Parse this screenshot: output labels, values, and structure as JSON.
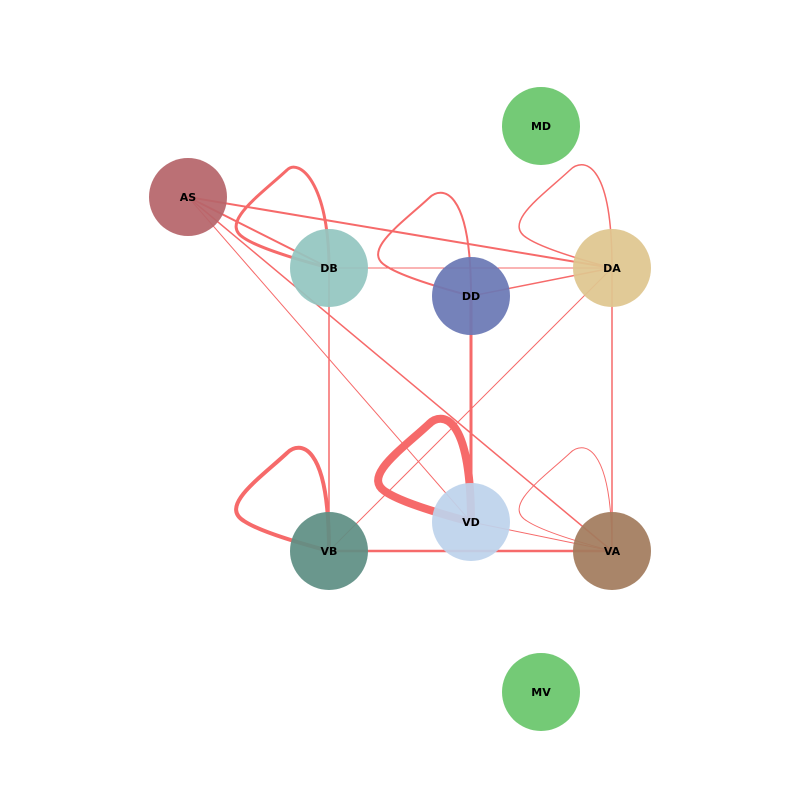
{
  "edge_color": "#f66a6a",
  "nodes": [
    {
      "id": "AS",
      "label": "AS",
      "color": "#b6656a"
    },
    {
      "id": "DB",
      "label": "DB",
      "color": "#93c6c1"
    },
    {
      "id": "DD",
      "label": "DD",
      "color": "#6b79b5"
    },
    {
      "id": "DA",
      "label": "DA",
      "color": "#dfc68f"
    },
    {
      "id": "MD",
      "label": "MD",
      "color": "#69c66c"
    },
    {
      "id": "VB",
      "label": "VB",
      "color": "#5f8f84"
    },
    {
      "id": "VD",
      "label": "VD",
      "color": "#bdd3ec"
    },
    {
      "id": "VA",
      "label": "VA",
      "color": "#a27c5e"
    },
    {
      "id": "MV",
      "label": "MV",
      "color": "#69c66c"
    }
  ],
  "edges": [
    {
      "source": "AS",
      "target": "DB",
      "weight": 2
    },
    {
      "source": "AS",
      "target": "DA",
      "weight": 2
    },
    {
      "source": "AS",
      "target": "VD",
      "weight": 1
    },
    {
      "source": "AS",
      "target": "VA",
      "weight": 1.5
    },
    {
      "source": "DB",
      "target": "DA",
      "weight": 1
    },
    {
      "source": "DB",
      "target": "VB",
      "weight": 1.5
    },
    {
      "source": "DD",
      "target": "DA",
      "weight": 1.5
    },
    {
      "source": "DD",
      "target": "VD",
      "weight": 3
    },
    {
      "source": "DA",
      "target": "VB",
      "weight": 1
    },
    {
      "source": "DA",
      "target": "VA",
      "weight": 1.5
    },
    {
      "source": "VB",
      "target": "VA",
      "weight": 2.5
    },
    {
      "source": "VD",
      "target": "VA",
      "weight": 1
    }
  ],
  "self_loops": [
    {
      "node": "DB",
      "weight": 3
    },
    {
      "node": "DD",
      "weight": 2
    },
    {
      "node": "DA",
      "weight": 1.5
    },
    {
      "node": "VB",
      "weight": 4
    },
    {
      "node": "VD",
      "weight": 8
    },
    {
      "node": "VA",
      "weight": 1
    }
  ]
}
